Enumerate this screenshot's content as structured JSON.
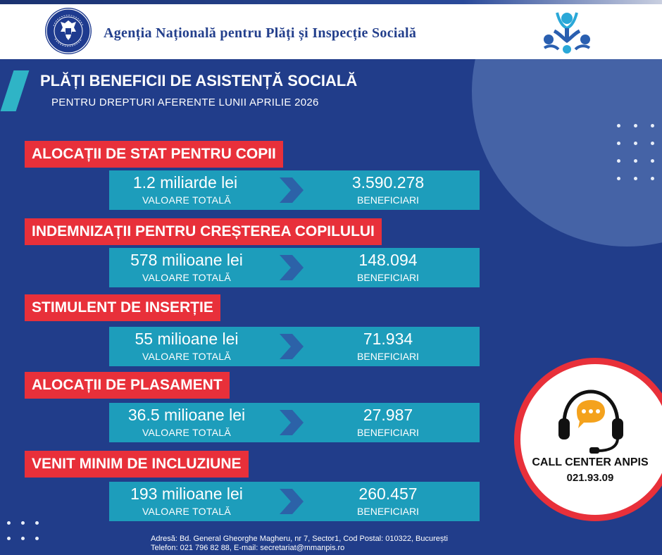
{
  "header": {
    "agency_name": "Agenția Națională pentru Plăți și Inspecție Socială",
    "crest_text": "GUVERNUL ROMÂNIEI"
  },
  "title": "PLĂȚI BENEFICII DE ASISTENȚĂ SOCIALĂ",
  "subtitle": "PENTRU DREPTURI AFERENTE LUNII APRILIE 2026",
  "benefits": [
    {
      "label": "ALOCAȚII DE STAT PENTRU COPII",
      "amount": "1.2 miliarde lei",
      "amount_label": "VALOARE TOTALĂ",
      "count": "3.590.278",
      "count_label": "BENEFICIARI"
    },
    {
      "label": "INDEMNIZAȚII PENTRU CREȘTEREA COPILULUI",
      "amount": "578 milioane lei",
      "amount_label": "VALOARE TOTALĂ",
      "count": "148.094",
      "count_label": "BENEFICIARI"
    },
    {
      "label": "STIMULENT DE INSERȚIE",
      "amount": "55 milioane lei",
      "amount_label": "VALOARE TOTALĂ",
      "count": "71.934",
      "count_label": "BENEFICIARI"
    },
    {
      "label": "ALOCAȚII DE PLASAMENT",
      "amount": "36.5 milioane lei",
      "amount_label": "VALOARE TOTALĂ",
      "count": "27.987",
      "count_label": "BENEFICIARI"
    },
    {
      "label": "VENIT MINIM DE INCLUZIUNE",
      "amount": "193 milioane lei",
      "amount_label": "VALOARE TOTALĂ",
      "count": "260.457",
      "count_label": "BENEFICIARI"
    }
  ],
  "call_center": {
    "title": "CALL CENTER ANPIS",
    "phone": "021.93.09",
    "icon": "headset-chat-icon"
  },
  "footer": {
    "address": "Adresă: Bd. General Gheorghe Magheru, nr 7, Sector1, Cod Postal: 010322, București",
    "contact": "Telefon: 021 796 82 88, E-mail: secretariat@mmanpis.ro"
  },
  "colors": {
    "background": "#213d8a",
    "label_red": "#e8303a",
    "bar_teal": "#1d9dbb",
    "arrow_blue": "#2c62a8",
    "accent_cyan": "#2fb4c6"
  }
}
